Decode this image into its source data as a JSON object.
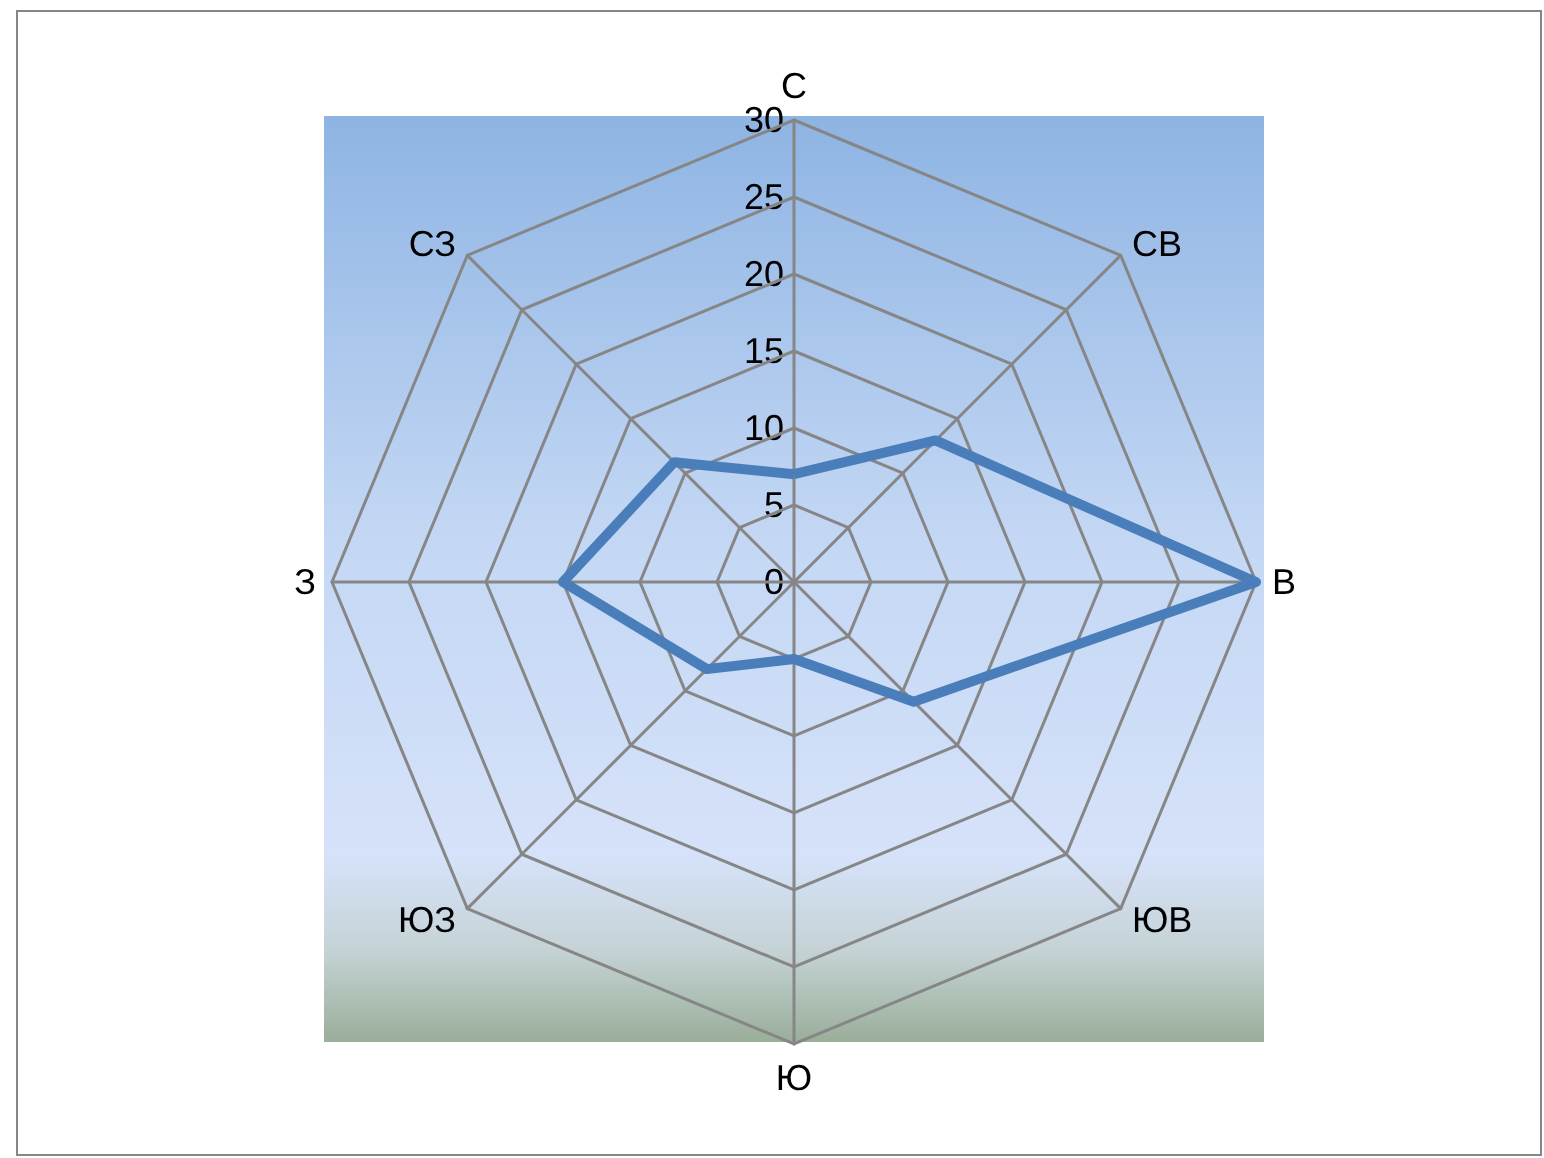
{
  "chart_data": {
    "type": "radar",
    "categories": [
      "С",
      "СВ",
      "В",
      "ЮВ",
      "Ю",
      "ЮЗ",
      "З",
      "СЗ"
    ],
    "series": [
      {
        "color": "#4a7ebb",
        "values": [
          7,
          13,
          30,
          11,
          5,
          8,
          15,
          11
        ]
      }
    ],
    "ylim": [
      0,
      30
    ],
    "yticks": [
      0,
      5,
      10,
      15,
      20,
      25,
      30
    ],
    "marker": "none",
    "line_style": "solid"
  }
}
